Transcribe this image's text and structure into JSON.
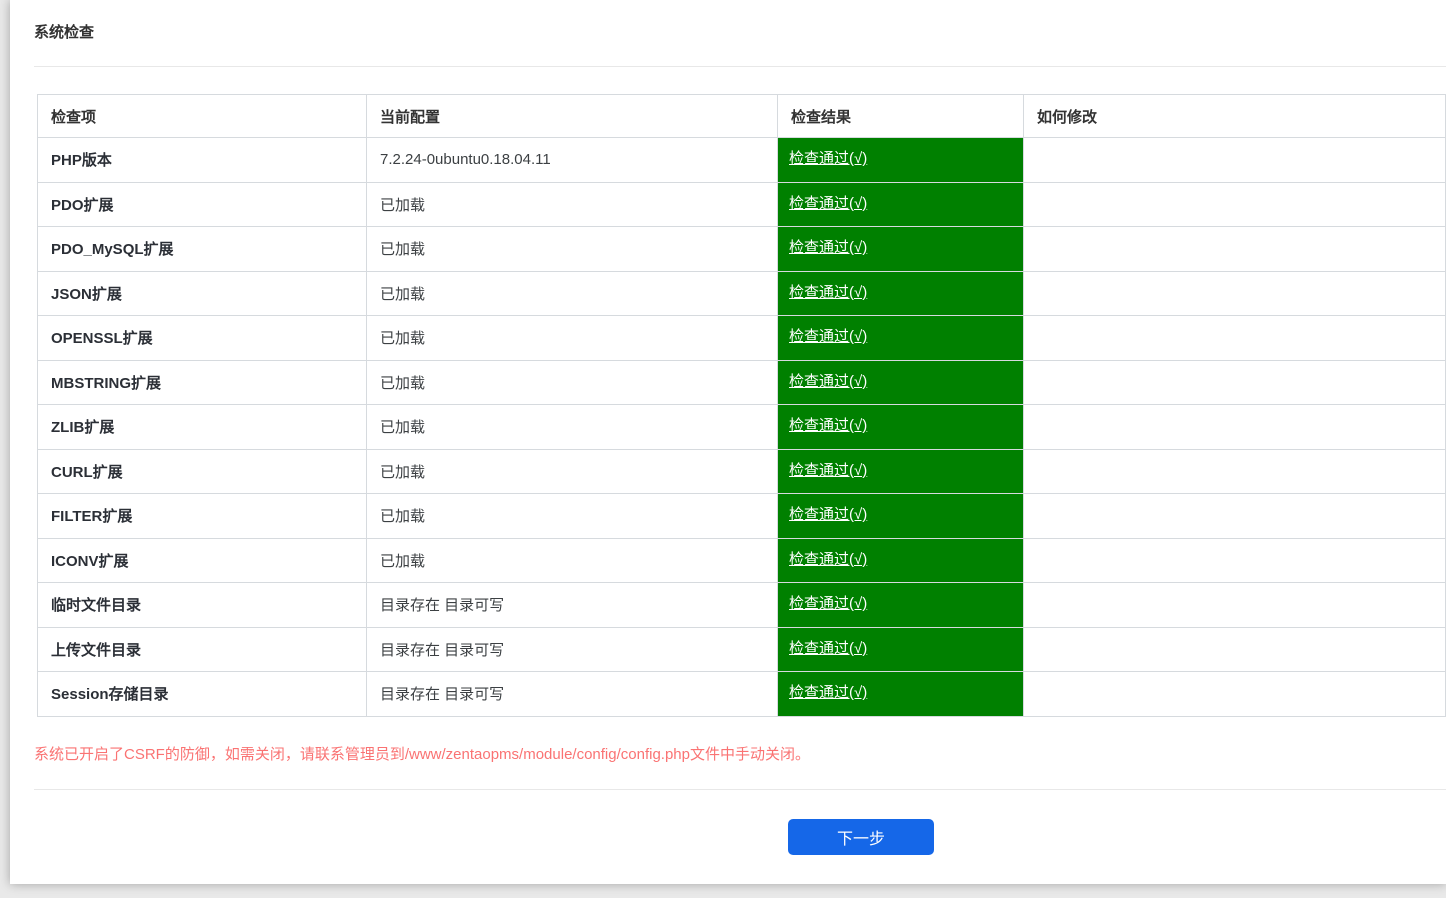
{
  "page": {
    "title": "系统检查",
    "csrf_note": "系统已开启了CSRF的防御，如需关闭，请联系管理员到/www/zentaopms/module/config/config.php文件中手动关闭。",
    "next_button_label": "下一步"
  },
  "colors": {
    "pass_badge_bg": "#008000",
    "pass_badge_text": "#ffffff",
    "warning_text": "#fa7373",
    "primary_button": "#1567e8",
    "table_border": "#d6dade"
  },
  "table": {
    "headers": [
      "检查项",
      "当前配置",
      "检查结果",
      "如何修改"
    ],
    "rows": [
      {
        "item": "PHP版本",
        "config": "7.2.24-0ubuntu0.18.04.11",
        "result": "检查通过(√)",
        "fix": ""
      },
      {
        "item": "PDO扩展",
        "config": "已加载",
        "result": "检查通过(√)",
        "fix": ""
      },
      {
        "item": "PDO_MySQL扩展",
        "config": "已加载",
        "result": "检查通过(√)",
        "fix": ""
      },
      {
        "item": "JSON扩展",
        "config": "已加载",
        "result": "检查通过(√)",
        "fix": ""
      },
      {
        "item": "OPENSSL扩展",
        "config": "已加载",
        "result": "检查通过(√)",
        "fix": ""
      },
      {
        "item": "MBSTRING扩展",
        "config": "已加载",
        "result": "检查通过(√)",
        "fix": ""
      },
      {
        "item": "ZLIB扩展",
        "config": "已加载",
        "result": "检查通过(√)",
        "fix": ""
      },
      {
        "item": "CURL扩展",
        "config": "已加载",
        "result": "检查通过(√)",
        "fix": ""
      },
      {
        "item": "FILTER扩展",
        "config": "已加载",
        "result": "检查通过(√)",
        "fix": ""
      },
      {
        "item": "ICONV扩展",
        "config": "已加载",
        "result": "检查通过(√)",
        "fix": ""
      },
      {
        "item": "临时文件目录",
        "config": "目录存在 目录可写",
        "result": "检查通过(√)",
        "fix": ""
      },
      {
        "item": "上传文件目录",
        "config": "目录存在 目录可写",
        "result": "检查通过(√)",
        "fix": ""
      },
      {
        "item": "Session存储目录",
        "config": "目录存在 目录可写",
        "result": "检查通过(√)",
        "fix": ""
      }
    ]
  }
}
